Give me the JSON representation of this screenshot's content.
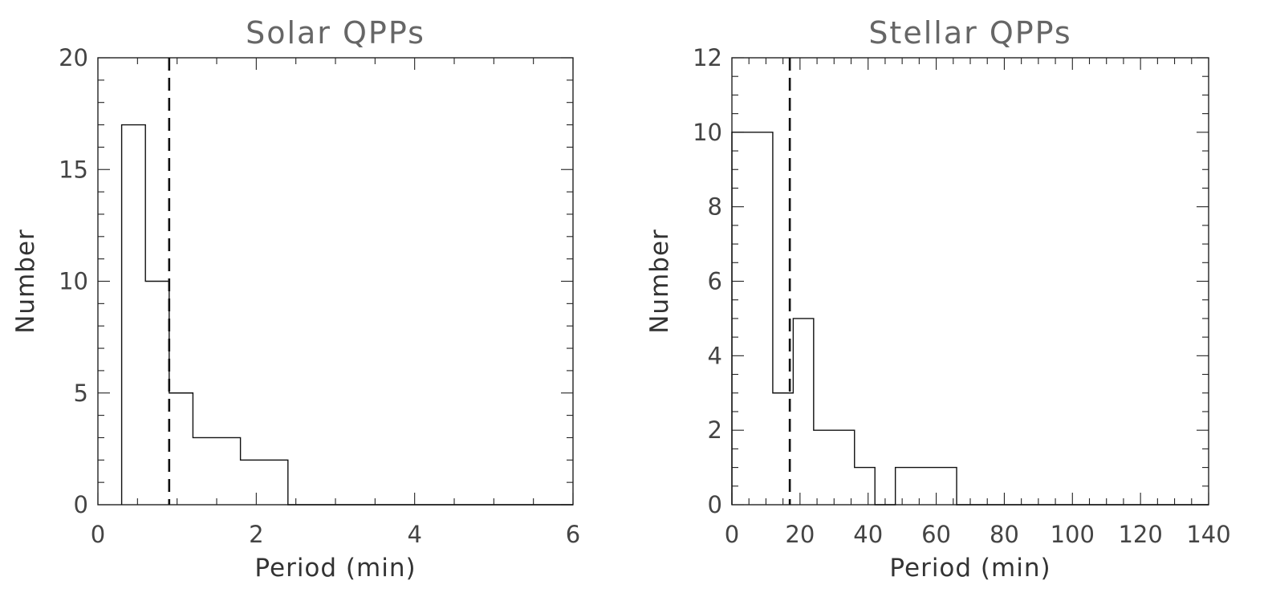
{
  "chart_data": [
    {
      "type": "bar",
      "title": "Solar QPPs",
      "xlabel": "Period (min)",
      "ylabel": "Number",
      "xlim": [
        0,
        6
      ],
      "ylim": [
        0,
        20
      ],
      "xticks": [
        0,
        2,
        4,
        6
      ],
      "yticks": [
        0,
        5,
        10,
        15,
        20
      ],
      "x_minor_step": 0.5,
      "y_minor_step": 1,
      "bin_edges": [
        0.3,
        0.6,
        0.9,
        1.2,
        1.8,
        2.4,
        6.0
      ],
      "values": [
        17,
        10,
        5,
        3,
        2,
        0
      ],
      "reference_line_x": 0.9,
      "grid": false,
      "legend": "none"
    },
    {
      "type": "bar",
      "title": "Stellar QPPs",
      "xlabel": "Period (min)",
      "ylabel": "Number",
      "xlim": [
        0,
        140
      ],
      "ylim": [
        0,
        12
      ],
      "xticks": [
        0,
        20,
        40,
        60,
        80,
        100,
        120,
        140
      ],
      "yticks": [
        0,
        2,
        4,
        6,
        8,
        10,
        12
      ],
      "x_minor_step": 5,
      "y_minor_step": 0.5,
      "bin_edges": [
        0,
        12,
        18,
        24,
        36,
        42,
        48,
        66,
        140
      ],
      "values": [
        10,
        3,
        5,
        2,
        1,
        0,
        1,
        0
      ],
      "reference_line_x": 17,
      "grid": false,
      "legend": "none"
    }
  ]
}
